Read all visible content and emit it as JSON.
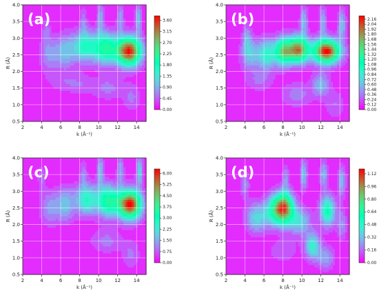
{
  "chart_data": [
    {
      "type": "heatmap",
      "panel_label": "(a)",
      "xlabel": "k (Å⁻¹)",
      "ylabel": "R (Å)",
      "xlim": [
        2,
        15
      ],
      "ylim": [
        0.5,
        4.0
      ],
      "x_ticks": [
        "2",
        "4",
        "6",
        "8",
        "10",
        "12",
        "14"
      ],
      "y_ticks": [
        "0.5",
        "1.0",
        "1.5",
        "2.0",
        "2.5",
        "3.0",
        "3.5",
        "4.0"
      ],
      "colorbar_ticks": [
        "0.00",
        "0.45",
        "0.90",
        "1.35",
        "1.80",
        "2.25",
        "2.70",
        "3.15",
        "3.60"
      ],
      "colorbar_range": [
        0,
        3.78
      ],
      "colormap": "rainbow",
      "grid": true,
      "hotspots": [
        {
          "k": 13.2,
          "r": 2.6,
          "value": 3.7
        },
        {
          "k": 10.5,
          "r": 2.7,
          "value": 2.2
        },
        {
          "k": 8.5,
          "r": 2.7,
          "value": 1.6
        }
      ]
    },
    {
      "type": "heatmap",
      "panel_label": "(b)",
      "xlabel": "k (Å⁻¹)",
      "ylabel": "R (Å)",
      "xlim": [
        2,
        15
      ],
      "ylim": [
        0.5,
        4.0
      ],
      "x_ticks": [
        "2",
        "4",
        "6",
        "8",
        "10",
        "12",
        "14"
      ],
      "y_ticks": [
        "0.5",
        "1.0",
        "1.5",
        "2.0",
        "2.5",
        "3.0",
        "3.5",
        "4.0"
      ],
      "colorbar_ticks": [
        "0.00",
        "0.12",
        "0.24",
        "0.36",
        "0.48",
        "0.60",
        "0.72",
        "0.84",
        "0.96",
        "1.08",
        "1.20",
        "1.32",
        "1.44",
        "1.56",
        "1.68",
        "1.80",
        "1.92",
        "2.04",
        "2.16"
      ],
      "colorbar_range": [
        0,
        2.24
      ],
      "colormap": "rainbow",
      "grid": true,
      "hotspots": [
        {
          "k": 12.5,
          "r": 2.6,
          "value": 2.2
        },
        {
          "k": 9.5,
          "r": 2.6,
          "value": 1.9
        },
        {
          "k": 8.0,
          "r": 2.6,
          "value": 1.6
        }
      ]
    },
    {
      "type": "heatmap",
      "panel_label": "(c)",
      "xlabel": "k (Å⁻¹)",
      "ylabel": "R (Å)",
      "xlim": [
        2,
        15
      ],
      "ylim": [
        0.5,
        4.0
      ],
      "x_ticks": [
        "2",
        "4",
        "6",
        "8",
        "10",
        "12",
        "14"
      ],
      "y_ticks": [
        "0.5",
        "1.0",
        "1.5",
        "2.0",
        "2.5",
        "3.0",
        "3.5",
        "4.0"
      ],
      "colorbar_ticks": [
        "0.00",
        "0.75",
        "1.50",
        "2.25",
        "3.00",
        "3.75",
        "4.50",
        "5.25",
        "6.00"
      ],
      "colorbar_range": [
        0,
        6.3
      ],
      "colormap": "rainbow",
      "grid": true,
      "hotspots": [
        {
          "k": 13.3,
          "r": 2.6,
          "value": 6.2
        },
        {
          "k": 10.5,
          "r": 2.7,
          "value": 3.5
        },
        {
          "k": 8.5,
          "r": 2.7,
          "value": 2.5
        }
      ]
    },
    {
      "type": "heatmap",
      "panel_label": "(d)",
      "xlabel": "k (Å⁻¹)",
      "ylabel": "R (Å)",
      "xlim": [
        2,
        15
      ],
      "ylim": [
        0.5,
        4.0
      ],
      "x_ticks": [
        "2",
        "4",
        "6",
        "8",
        "10",
        "12",
        "14"
      ],
      "y_ticks": [
        "0.5",
        "1.0",
        "1.5",
        "2.0",
        "2.5",
        "3.0",
        "3.5",
        "4.0"
      ],
      "colorbar_ticks": [
        "0.00",
        "0.16",
        "0.32",
        "0.48",
        "0.64",
        "0.80",
        "0.96",
        "1.12"
      ],
      "colorbar_range": [
        0,
        1.18
      ],
      "colormap": "rainbow",
      "grid": true,
      "hotspots": [
        {
          "k": 8.2,
          "r": 2.5,
          "value": 1.15
        },
        {
          "k": 12.8,
          "r": 2.4,
          "value": 0.65
        },
        {
          "k": 11.2,
          "r": 1.3,
          "value": 0.5
        }
      ]
    }
  ]
}
